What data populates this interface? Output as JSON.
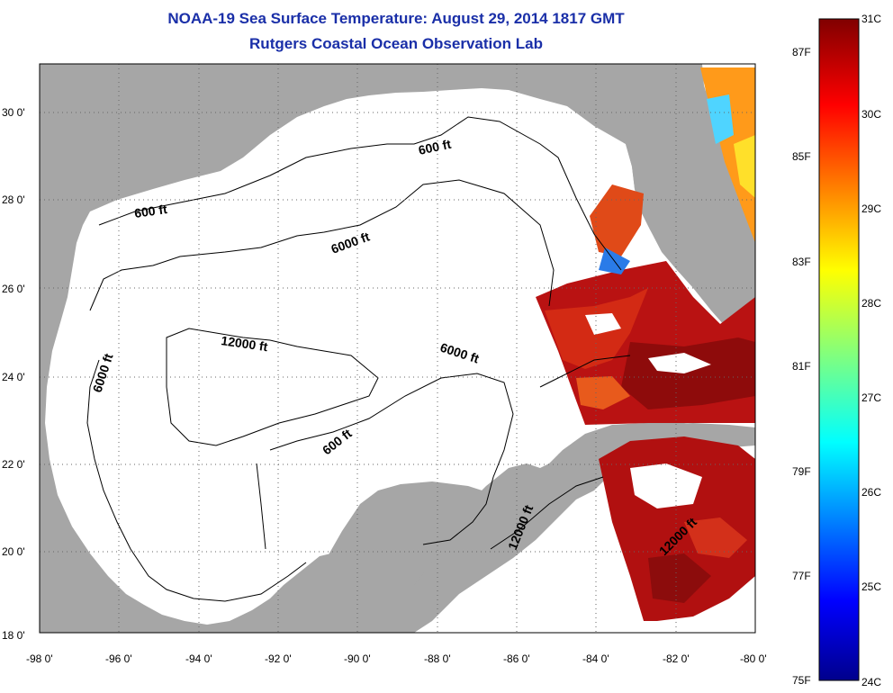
{
  "title": "NOAA-19 Sea Surface Temperature:  August 29, 2014 1817 GMT",
  "subtitle": "Rutgers Coastal Ocean Observation Lab",
  "map": {
    "lon_range": [
      -98,
      -80
    ],
    "lat_range": [
      18,
      31
    ],
    "lon_ticks": [
      "-98 0'",
      "-96 0'",
      "-94 0'",
      "-92 0'",
      "-90 0'",
      "-88 0'",
      "-86 0'",
      "-84 0'",
      "-82 0'",
      "-80 0'"
    ],
    "lat_ticks": [
      "18 0'",
      "20 0'",
      "22 0'",
      "24 0'",
      "26 0'",
      "28 0'",
      "30 0'"
    ]
  },
  "contour_labels": [
    "600 ft",
    "600 ft",
    "6000 ft",
    "6000 ft",
    "6000 ft",
    "12000 ft",
    "600 ft",
    "12000 ft",
    "12000 ft"
  ],
  "colorbar": {
    "celsius": [
      "31C",
      "30C",
      "29C",
      "28C",
      "27C",
      "26C",
      "25C",
      "24C"
    ],
    "fahrenheit": [
      "87F",
      "85F",
      "83F",
      "81F",
      "79F",
      "77F",
      "75F"
    ]
  },
  "colors": {
    "title": "#1a2fa8",
    "land": "#a6a6a6",
    "ocean": "#ffffff"
  }
}
